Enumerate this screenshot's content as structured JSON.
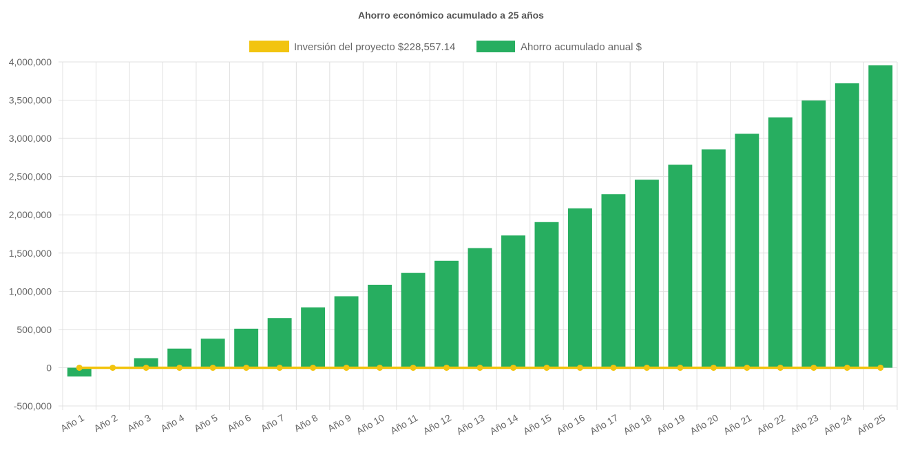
{
  "chart_data": {
    "type": "bar",
    "title": "Ahorro económico acumulado a 25 años",
    "categories": [
      "Año 1",
      "Año 2",
      "Año 3",
      "Año 4",
      "Año 5",
      "Año 6",
      "Año 7",
      "Año 8",
      "Año 9",
      "Año 10",
      "Año 11",
      "Año 12",
      "Año 13",
      "Año 14",
      "Año 15",
      "Año 16",
      "Año 17",
      "Año 18",
      "Año 19",
      "Año 20",
      "Año 21",
      "Año 22",
      "Año 23",
      "Año 24",
      "Año 25"
    ],
    "series": [
      {
        "name": "Inversión del proyecto $228,557.14",
        "kind": "line",
        "color": "#f2c40f",
        "values": [
          0,
          0,
          0,
          0,
          0,
          0,
          0,
          0,
          0,
          0,
          0,
          0,
          0,
          0,
          0,
          0,
          0,
          0,
          0,
          0,
          0,
          0,
          0,
          0,
          0
        ]
      },
      {
        "name": "Ahorro acumulado anual $",
        "kind": "bar",
        "color": "#27ae60",
        "values": [
          -115000,
          5000,
          125000,
          250000,
          380000,
          510000,
          650000,
          790000,
          935000,
          1085000,
          1240000,
          1400000,
          1565000,
          1730000,
          1905000,
          2085000,
          2270000,
          2460000,
          2655000,
          2855000,
          3060000,
          3275000,
          3495000,
          3720000,
          3955000
        ]
      }
    ],
    "yticks": [
      "4,000,000",
      "3,500,000",
      "3,000,000",
      "2,500,000",
      "2,000,000",
      "1,500,000",
      "1,000,000",
      "500,000",
      "0",
      "-500,000"
    ],
    "ylim": [
      -500000,
      4000000
    ],
    "grid": true,
    "legend_position": "top"
  }
}
